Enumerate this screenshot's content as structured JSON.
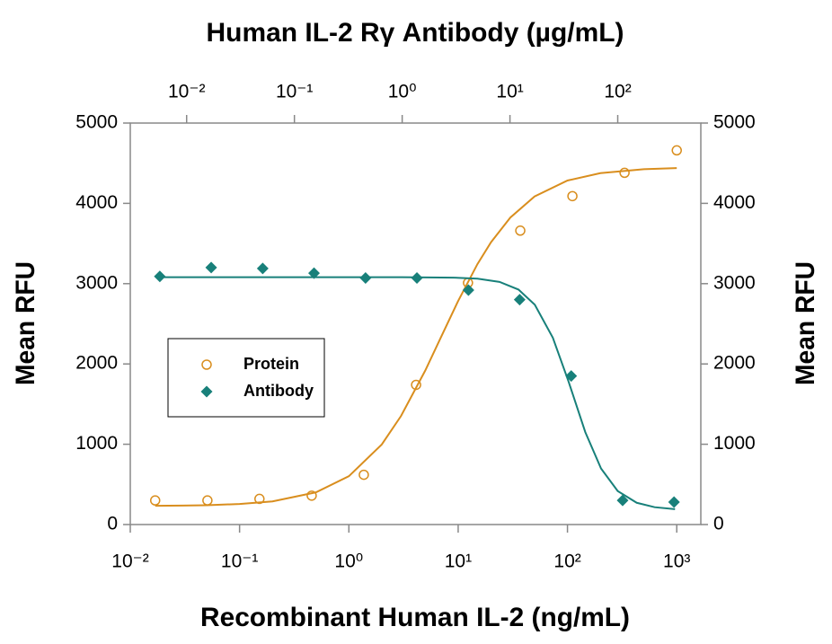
{
  "chart_data": {
    "type": "scatter",
    "title": "Human IL-2 Rγ Antibody (µg/mL)",
    "xlabel": "Recombinant Human IL-2 (ng/mL)",
    "ylabel": "Mean RFU",
    "y2label": "Mean RFU",
    "xscale": "log",
    "xlim": [
      0.01,
      1660
    ],
    "xticks": [
      {
        "value": 0.01,
        "label": "10⁻²"
      },
      {
        "value": 0.1,
        "label": "10⁻¹"
      },
      {
        "value": 1,
        "label": "10⁰"
      },
      {
        "value": 10,
        "label": "10¹"
      },
      {
        "value": 100,
        "label": "10²"
      },
      {
        "value": 1000,
        "label": "10³"
      }
    ],
    "x2scale": "log",
    "x2lim": [
      0.003,
      590
    ],
    "x2ticks": [
      {
        "value": 0.01,
        "label": "10⁻²"
      },
      {
        "value": 0.1,
        "label": "10⁻¹"
      },
      {
        "value": 1,
        "label": "10⁰"
      },
      {
        "value": 10,
        "label": "10¹"
      },
      {
        "value": 100,
        "label": "10²"
      }
    ],
    "ylim": [
      0,
      5000
    ],
    "yticks": [
      0,
      1000,
      2000,
      3000,
      4000,
      5000
    ],
    "y2lim": [
      0,
      5000
    ],
    "y2ticks": [
      0,
      1000,
      2000,
      3000,
      4000,
      5000
    ],
    "grid": false,
    "legend": "center-left",
    "series": [
      {
        "name": "Protein",
        "color": "#d98e1e",
        "marker": "circle-open",
        "xaxis": "x",
        "x": [
          0.0169,
          0.0508,
          0.152,
          0.457,
          1.37,
          4.12,
          12.3,
          37,
          111,
          333,
          1000
        ],
        "values": [
          300,
          300,
          320,
          360,
          620,
          1740,
          3010,
          3660,
          4090,
          4380,
          4660
        ],
        "fit": {
          "x": [
            0.0169,
            0.03,
            0.05,
            0.1,
            0.2,
            0.5,
            1,
            2,
            3,
            5,
            7,
            10,
            15,
            20,
            30,
            50,
            100,
            200,
            500,
            1000
          ],
          "values": [
            233,
            236,
            241,
            256,
            288,
            401,
            602,
            997,
            1352,
            1918,
            2340,
            2785,
            3243,
            3517,
            3823,
            4086,
            4284,
            4376,
            4425,
            4439
          ]
        }
      },
      {
        "name": "Antibody",
        "color": "#18807a",
        "marker": "diamond",
        "xaxis": "x2",
        "x": [
          0.00564,
          0.0169,
          0.0508,
          0.152,
          0.457,
          1.37,
          4.12,
          12.3,
          37,
          111,
          333
        ],
        "values": [
          3090,
          3200,
          3190,
          3130,
          3070,
          3070,
          2920,
          2800,
          1850,
          300,
          280
        ],
        "fit": {
          "x": [
            0.00564,
            0.01,
            0.1,
            1,
            3,
            5,
            8,
            12,
            17,
            25,
            35,
            50,
            70,
            100,
            150,
            220,
            340
          ],
          "values": [
            3080,
            3080,
            3080,
            3080,
            3075,
            3062,
            3022,
            2926,
            2738,
            2326,
            1779,
            1151,
            698,
            417,
            271,
            216,
            192
          ]
        }
      }
    ]
  }
}
